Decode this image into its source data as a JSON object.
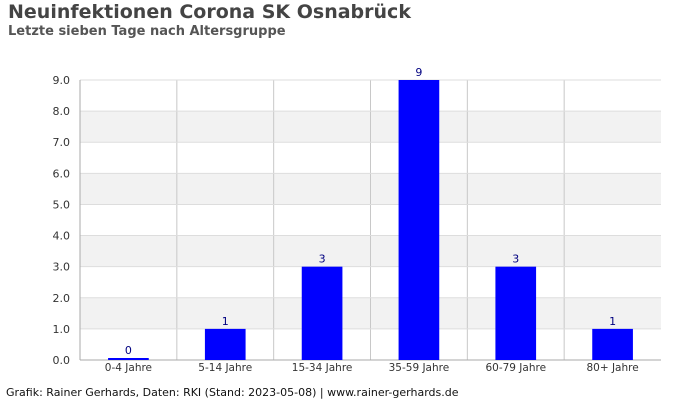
{
  "title": "Neuinfektionen Corona SK Osnabrück",
  "subtitle": "Letzte sieben Tage nach Altersgruppe",
  "footer": "Grafik: Rainer Gerhards, Daten: RKI (Stand: 2023-05-08) | www.rainer-gerhards.de",
  "chart_data": {
    "type": "bar",
    "categories": [
      "0-4 Jahre",
      "5-14 Jahre",
      "15-34 Jahre",
      "35-59 Jahre",
      "60-79 Jahre",
      "80+ Jahre"
    ],
    "values": [
      0,
      1,
      3,
      9,
      3,
      1
    ],
    "data_labels": [
      "0",
      "1",
      "3",
      "9",
      "3",
      "1"
    ],
    "ylim": [
      0,
      9
    ],
    "yticks": [
      "0.0",
      "1.0",
      "2.0",
      "3.0",
      "4.0",
      "5.0",
      "6.0",
      "7.0",
      "8.0",
      "9.0"
    ],
    "bar_color": "#0000ff",
    "label_color": "#000080",
    "band_color": "#f2f2f2",
    "grid": true
  }
}
